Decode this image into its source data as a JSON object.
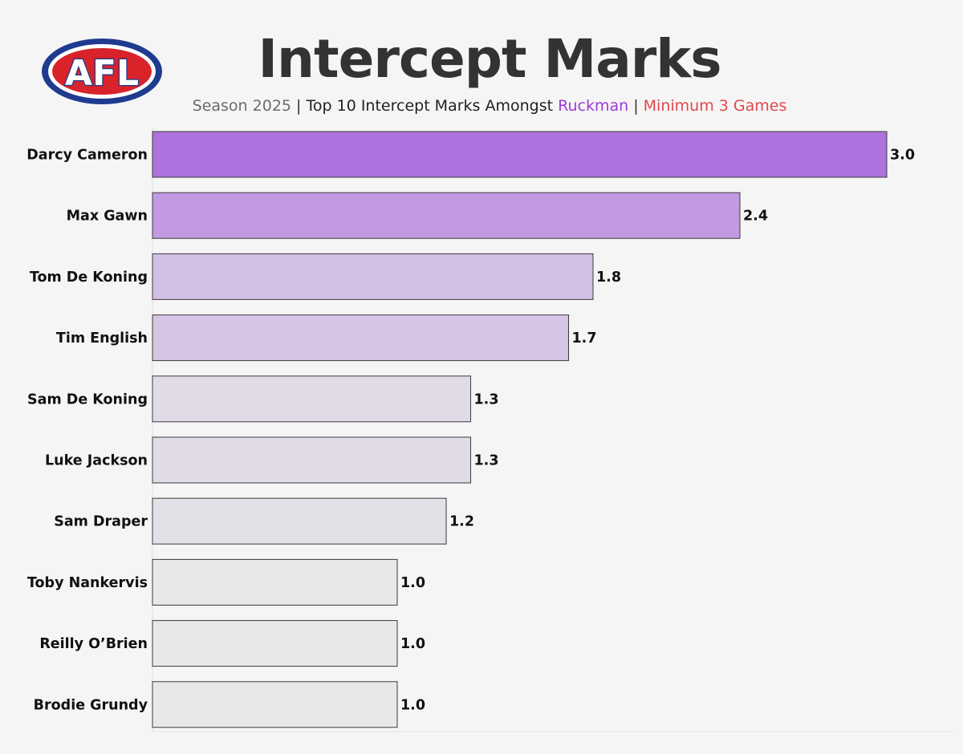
{
  "logo": {
    "text": "AFL"
  },
  "title": "Intercept Marks",
  "subtitle": {
    "season": "Season 2025",
    "separator": "|",
    "main": "Top 10 Intercept Marks Amongst",
    "position": "Ruckman",
    "filter": "Minimum 3 Games"
  },
  "colors": {
    "background": "#f5f5f5",
    "ruckman_accent": "#9a3bd8",
    "filter_accent": "#e0474c",
    "title": "#333333",
    "bar_max": "#ad72dd",
    "bar_min": "#e8e8e8"
  },
  "chart_data": {
    "type": "bar",
    "orientation": "horizontal",
    "categories": [
      "Darcy Cameron",
      "Max Gawn",
      "Tom De Koning",
      "Tim English",
      "Sam De Koning",
      "Luke Jackson",
      "Sam Draper",
      "Toby Nankervis",
      "Reilly O’Brien",
      "Brodie Grundy"
    ],
    "values": [
      3.0,
      2.4,
      1.8,
      1.7,
      1.3,
      1.3,
      1.2,
      1.0,
      1.0,
      1.0
    ],
    "value_labels": [
      "3.0",
      "2.4",
      "1.8",
      "1.7",
      "1.3",
      "1.3",
      "1.2",
      "1.0",
      "1.0",
      "1.0"
    ],
    "xlim": [
      0,
      3.0
    ],
    "grid": false,
    "legend": "none"
  }
}
